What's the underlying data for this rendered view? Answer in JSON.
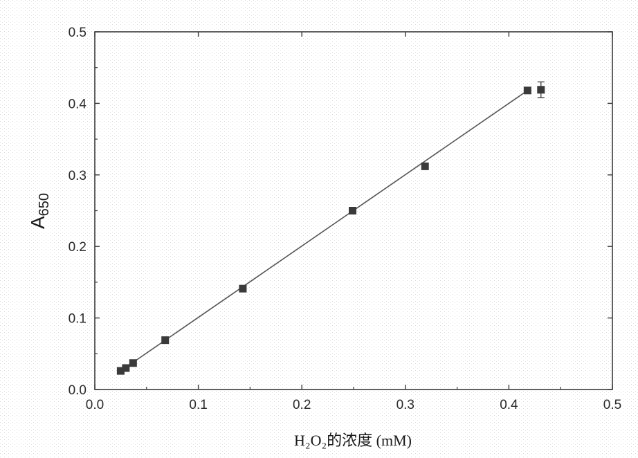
{
  "chart_data": {
    "type": "scatter",
    "title": "",
    "xlabel": "H₂O₂的浓度 (mM)",
    "ylabel": {
      "main": "A",
      "sub": "650"
    },
    "xlim": [
      0.0,
      0.5
    ],
    "ylim": [
      0.0,
      0.5
    ],
    "xticks": [
      "0.0",
      "0.1",
      "0.2",
      "0.3",
      "0.4",
      "0.5"
    ],
    "yticks": [
      "0.0",
      "0.1",
      "0.2",
      "0.3",
      "0.4",
      "0.5"
    ],
    "grid": false,
    "legend": "none",
    "series": [
      {
        "marker": "square",
        "color": "#3a3a3a",
        "points": [
          {
            "x": 0.025,
            "y": 0.026,
            "err": 0.002
          },
          {
            "x": 0.03,
            "y": 0.03,
            "err": 0.002
          },
          {
            "x": 0.037,
            "y": 0.037,
            "err": 0.002
          },
          {
            "x": 0.068,
            "y": 0.069,
            "err": 0.002
          },
          {
            "x": 0.143,
            "y": 0.141,
            "err": 0.002
          },
          {
            "x": 0.249,
            "y": 0.25,
            "err": 0.002
          },
          {
            "x": 0.319,
            "y": 0.312,
            "err": 0.003
          },
          {
            "x": 0.418,
            "y": 0.418,
            "err": 0.003
          },
          {
            "x": 0.431,
            "y": 0.419,
            "err": 0.011
          }
        ]
      }
    ],
    "fit_line": {
      "x": [
        0.025,
        0.418
      ],
      "y": [
        0.026,
        0.418
      ],
      "color": "#555555"
    }
  }
}
